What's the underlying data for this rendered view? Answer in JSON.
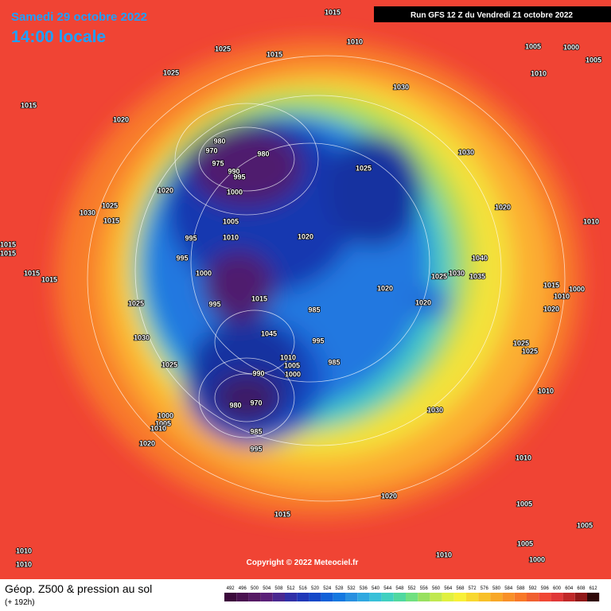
{
  "header": {
    "date": "Samedi 29 octobre 2022",
    "time": "14:00 locale",
    "run": "Run GFS 12 Z du Vendredi 21 octobre 2022"
  },
  "footer": {
    "title": "Géop. Z500 & pression au sol",
    "lead": "(+ 192h)",
    "copyright": "Copyright © 2022 Meteociel.fr"
  },
  "legend": {
    "levels": [
      "492",
      "496",
      "500",
      "504",
      "508",
      "512",
      "516",
      "520",
      "524",
      "528",
      "532",
      "536",
      "540",
      "544",
      "548",
      "552",
      "556",
      "560",
      "564",
      "568",
      "572",
      "576",
      "580",
      "584",
      "588",
      "592",
      "596",
      "600",
      "604",
      "608",
      "612"
    ],
    "colors": [
      "#3c0a3c",
      "#4a1250",
      "#561a64",
      "#5a2078",
      "#4a2890",
      "#3030a8",
      "#2038b8",
      "#1448c8",
      "#1060d8",
      "#1478e0",
      "#2890e0",
      "#30a8e0",
      "#38c0d8",
      "#40d0c0",
      "#50d8a0",
      "#70e080",
      "#98e060",
      "#c0e850",
      "#e0f040",
      "#f8f038",
      "#f8d830",
      "#f8c028",
      "#f8a828",
      "#f89028",
      "#f87828",
      "#f06030",
      "#f04834",
      "#e03838",
      "#c02828",
      "#901818",
      "#300808"
    ]
  },
  "isobar_labels": [
    "1015",
    "1025",
    "1015",
    "1010",
    "1005",
    "1000",
    "1005",
    "1010",
    "1025",
    "1030",
    "1015",
    "1020",
    "980",
    "980",
    "970",
    "975",
    "990",
    "995",
    "1025",
    "1030",
    "1020",
    "1000",
    "1025",
    "1030",
    "1015",
    "1020",
    "1005",
    "1010",
    "1020",
    "995",
    "995",
    "1040",
    "1010",
    "1025",
    "1030",
    "1035",
    "1015",
    "1015",
    "1000",
    "1015",
    "1015",
    "1020",
    "1020",
    "1015",
    "1000",
    "1010",
    "995",
    "1015",
    "985",
    "1025",
    "1020",
    "1030",
    "1045",
    "995",
    "1025",
    "1025",
    "1010",
    "1005",
    "1000",
    "985",
    "1025",
    "990",
    "1010",
    "980",
    "970",
    "1030",
    "1000",
    "1005",
    "1010",
    "985",
    "1020",
    "995",
    "1010",
    "1020",
    "1015",
    "1005",
    "1005",
    "1005",
    "1010",
    "1010",
    "1000",
    "1010"
  ]
}
